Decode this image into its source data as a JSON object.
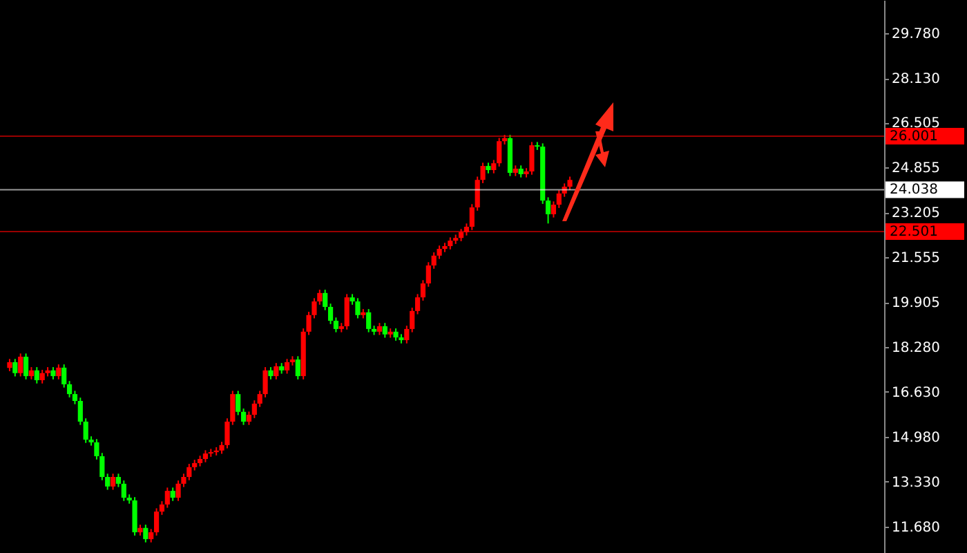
{
  "chart_data": {
    "type": "candlestick",
    "categories": [
      null,
      null,
      null,
      null,
      null,
      null,
      null,
      null,
      null,
      null,
      null,
      null,
      null,
      null,
      null,
      null,
      null,
      null,
      null,
      null,
      null,
      null,
      null,
      null,
      null,
      null,
      null,
      null,
      null,
      null,
      null,
      null,
      null,
      null,
      null,
      null,
      null,
      null,
      null,
      null,
      null,
      null,
      null,
      null,
      null,
      null,
      null,
      null,
      null,
      null,
      null,
      null,
      null,
      null,
      null,
      null,
      null,
      null,
      null,
      null,
      null,
      null,
      null,
      null,
      null,
      null,
      null,
      null,
      null,
      null,
      null,
      null,
      null,
      null,
      null,
      null,
      null,
      null,
      null,
      null,
      null,
      null,
      null,
      null,
      null,
      null,
      null,
      null,
      null,
      null,
      null,
      null,
      null,
      null,
      null,
      null,
      null,
      null,
      null,
      null,
      null,
      null,
      null,
      null,
      null,
      null,
      null,
      null,
      null,
      null,
      null,
      null,
      null,
      null,
      null,
      null,
      null,
      null,
      null,
      null,
      null,
      null,
      null,
      null,
      null,
      null,
      null,
      null,
      null,
      null,
      null,
      null,
      null,
      null,
      null,
      null,
      null,
      null,
      null,
      null,
      null,
      null,
      null,
      null,
      null,
      null,
      null,
      null,
      null,
      null,
      null,
      null,
      null,
      null,
      null,
      null,
      null,
      null,
      null,
      null
    ],
    "ohlc": [
      [
        17.5,
        17.83,
        17.38,
        17.71
      ],
      [
        17.71,
        17.83,
        17.19,
        17.31
      ],
      [
        17.31,
        18.03,
        17.19,
        17.91
      ],
      [
        17.91,
        18.03,
        17.08,
        17.2
      ],
      [
        17.2,
        17.53,
        17.08,
        17.41
      ],
      [
        17.41,
        17.53,
        16.93,
        17.05
      ],
      [
        17.05,
        17.43,
        16.93,
        17.31
      ],
      [
        17.31,
        17.53,
        17.19,
        17.41
      ],
      [
        17.41,
        17.53,
        17.08,
        17.2
      ],
      [
        17.2,
        17.63,
        17.08,
        17.51
      ],
      [
        17.51,
        17.63,
        16.78,
        16.9
      ],
      [
        16.9,
        17.02,
        16.42,
        16.54
      ],
      [
        16.54,
        16.66,
        16.17,
        16.29
      ],
      [
        16.29,
        16.41,
        15.41,
        15.53
      ],
      [
        15.53,
        15.65,
        14.75,
        14.87
      ],
      [
        14.87,
        14.99,
        14.65,
        14.77
      ],
      [
        14.77,
        14.89,
        14.14,
        14.26
      ],
      [
        14.26,
        14.38,
        13.38,
        13.5
      ],
      [
        13.5,
        13.62,
        13.03,
        13.15
      ],
      [
        13.15,
        13.62,
        13.03,
        13.5
      ],
      [
        13.5,
        13.62,
        13.13,
        13.25
      ],
      [
        13.25,
        13.37,
        12.62,
        12.74
      ],
      [
        12.74,
        12.86,
        12.52,
        12.64
      ],
      [
        12.64,
        12.76,
        11.35,
        11.47
      ],
      [
        11.47,
        11.75,
        11.35,
        11.63
      ],
      [
        11.63,
        11.75,
        11.1,
        11.22
      ],
      [
        11.22,
        11.59,
        11.1,
        11.47
      ],
      [
        11.47,
        12.35,
        11.35,
        12.23
      ],
      [
        12.23,
        12.61,
        12.11,
        12.49
      ],
      [
        12.49,
        13.11,
        12.37,
        12.99
      ],
      [
        12.99,
        13.11,
        12.62,
        12.74
      ],
      [
        12.74,
        13.37,
        12.62,
        13.25
      ],
      [
        13.25,
        13.62,
        13.13,
        13.5
      ],
      [
        13.5,
        13.98,
        13.38,
        13.86
      ],
      [
        13.86,
        14.13,
        13.74,
        14.01
      ],
      [
        14.01,
        14.28,
        13.89,
        14.16
      ],
      [
        14.16,
        14.48,
        14.04,
        14.36
      ],
      [
        14.36,
        14.53,
        14.24,
        14.41
      ],
      [
        14.41,
        14.59,
        14.29,
        14.47
      ],
      [
        14.47,
        14.79,
        14.35,
        14.67
      ],
      [
        14.67,
        15.65,
        14.55,
        15.53
      ],
      [
        15.53,
        16.66,
        15.41,
        16.54
      ],
      [
        16.54,
        16.66,
        15.77,
        15.89
      ],
      [
        15.89,
        16.01,
        15.41,
        15.53
      ],
      [
        15.53,
        15.9,
        15.41,
        15.78
      ],
      [
        15.78,
        16.31,
        15.66,
        16.19
      ],
      [
        16.19,
        16.66,
        16.07,
        16.54
      ],
      [
        16.54,
        17.53,
        16.42,
        17.41
      ],
      [
        17.41,
        17.53,
        17.08,
        17.2
      ],
      [
        17.2,
        17.68,
        17.08,
        17.56
      ],
      [
        17.56,
        17.68,
        17.29,
        17.41
      ],
      [
        17.41,
        17.83,
        17.29,
        17.71
      ],
      [
        17.71,
        17.93,
        17.59,
        17.81
      ],
      [
        17.81,
        17.93,
        17.08,
        17.2
      ],
      [
        17.2,
        18.95,
        17.08,
        18.83
      ],
      [
        18.83,
        19.56,
        18.71,
        19.44
      ],
      [
        19.44,
        20.06,
        19.32,
        19.94
      ],
      [
        19.94,
        20.37,
        19.82,
        20.25
      ],
      [
        20.25,
        20.37,
        19.62,
        19.74
      ],
      [
        19.74,
        19.86,
        19.11,
        19.23
      ],
      [
        19.23,
        19.35,
        18.81,
        18.93
      ],
      [
        18.93,
        19.15,
        18.81,
        19.03
      ],
      [
        19.03,
        20.21,
        18.91,
        20.09
      ],
      [
        20.09,
        20.21,
        19.82,
        19.94
      ],
      [
        19.94,
        20.06,
        19.32,
        19.44
      ],
      [
        19.44,
        19.66,
        19.32,
        19.54
      ],
      [
        19.54,
        19.66,
        18.81,
        18.93
      ],
      [
        18.93,
        19.05,
        18.71,
        18.83
      ],
      [
        18.83,
        19.15,
        18.71,
        19.03
      ],
      [
        19.03,
        19.15,
        18.61,
        18.73
      ],
      [
        18.73,
        18.95,
        18.61,
        18.83
      ],
      [
        18.83,
        18.95,
        18.5,
        18.62
      ],
      [
        18.62,
        18.74,
        18.4,
        18.52
      ],
      [
        18.52,
        19.05,
        18.4,
        18.93
      ],
      [
        18.93,
        19.71,
        18.81,
        19.59
      ],
      [
        19.59,
        20.21,
        19.47,
        20.09
      ],
      [
        20.09,
        20.72,
        19.97,
        20.6
      ],
      [
        20.6,
        21.38,
        20.48,
        21.26
      ],
      [
        21.26,
        21.74,
        21.14,
        21.62
      ],
      [
        21.62,
        21.99,
        21.5,
        21.87
      ],
      [
        21.87,
        22.09,
        21.75,
        21.97
      ],
      [
        21.97,
        22.29,
        21.85,
        22.17
      ],
      [
        22.17,
        22.39,
        22.05,
        22.27
      ],
      [
        22.27,
        22.6,
        22.15,
        22.48
      ],
      [
        22.48,
        22.8,
        22.36,
        22.68
      ],
      [
        22.68,
        23.51,
        22.56,
        23.39
      ],
      [
        23.39,
        24.52,
        23.27,
        24.4
      ],
      [
        24.4,
        25.03,
        24.28,
        24.91
      ],
      [
        24.91,
        25.03,
        24.64,
        24.76
      ],
      [
        24.76,
        25.13,
        24.64,
        25.01
      ],
      [
        25.01,
        25.94,
        24.89,
        25.82
      ],
      [
        25.82,
        26.05,
        25.7,
        25.93
      ],
      [
        25.93,
        26.05,
        24.54,
        24.66
      ],
      [
        24.66,
        24.93,
        24.54,
        24.81
      ],
      [
        24.81,
        24.93,
        24.49,
        24.61
      ],
      [
        24.61,
        24.83,
        24.49,
        24.71
      ],
      [
        24.71,
        25.79,
        24.59,
        25.67
      ],
      [
        25.67,
        25.79,
        25.5,
        25.62
      ],
      [
        25.62,
        25.74,
        23.52,
        23.64
      ],
      [
        23.64,
        23.76,
        22.8,
        23.14
      ],
      [
        23.14,
        23.61,
        23.02,
        23.49
      ],
      [
        23.49,
        24.02,
        23.37,
        23.9
      ],
      [
        23.9,
        24.27,
        23.78,
        24.15
      ],
      [
        24.15,
        24.52,
        24.03,
        24.4
      ],
      null,
      null,
      null,
      null,
      null,
      null,
      null,
      null,
      null,
      null,
      null,
      null,
      null,
      null,
      null,
      null,
      null,
      null,
      null,
      null,
      null,
      null,
      null,
      null,
      null,
      null,
      null,
      null,
      null,
      null,
      null,
      null,
      null,
      null,
      null,
      null,
      null,
      null,
      null,
      null,
      null,
      null,
      null,
      null,
      null,
      null,
      null,
      null,
      null,
      null,
      null,
      null,
      null,
      null,
      null,
      null
    ],
    "colors": [
      "#ff0000",
      "#00ff00",
      "#ff0000",
      "#00ff00",
      "#ff0000",
      "#00ff00",
      "#ff0000",
      "#ff0000",
      "#00ff00",
      "#ff0000",
      "#00ff00",
      "#00ff00",
      "#00ff00",
      "#00ff00",
      "#00ff00",
      "#00ff00",
      "#00ff00",
      "#00ff00",
      "#00ff00",
      "#ff0000",
      "#00ff00",
      "#00ff00",
      "#00ff00",
      "#00ff00",
      "#ff0000",
      "#00ff00",
      "#ff0000",
      "#ff0000",
      "#ff0000",
      "#ff0000",
      "#00ff00",
      "#ff0000",
      "#ff0000",
      "#ff0000",
      "#ff0000",
      "#ff0000",
      "#ff0000",
      "#ff0000",
      "#ff0000",
      "#ff0000",
      "#ff0000",
      "#ff0000",
      "#00ff00",
      "#00ff00",
      "#ff0000",
      "#ff0000",
      "#ff0000",
      "#ff0000",
      "#00ff00",
      "#ff0000",
      "#00ff00",
      "#ff0000",
      "#ff0000",
      "#00ff00",
      "#ff0000",
      "#ff0000",
      "#ff0000",
      "#ff0000",
      "#00ff00",
      "#00ff00",
      "#00ff00",
      "#ff0000",
      "#ff0000",
      "#00ff00",
      "#00ff00",
      "#ff0000",
      "#00ff00",
      "#00ff00",
      "#ff0000",
      "#00ff00",
      "#ff0000",
      "#00ff00",
      "#00ff00",
      "#ff0000",
      "#ff0000",
      "#ff0000",
      "#ff0000",
      "#ff0000",
      "#ff0000",
      "#ff0000",
      "#ff0000",
      "#ff0000",
      "#ff0000",
      "#ff0000",
      "#ff0000",
      "#ff0000",
      "#ff0000",
      "#ff0000",
      "#00ff00",
      "#ff0000",
      "#ff0000",
      "#ff0000",
      "#00ff00",
      "#ff0000",
      "#00ff00",
      "#ff0000",
      "#ff0000",
      "#00ff00",
      "#00ff00",
      "#00ff00",
      "#ff0000",
      "#ff0000",
      "#ff0000",
      "#ff0000",
      null,
      null,
      null,
      null,
      null,
      null,
      null,
      null,
      null,
      null,
      null,
      null,
      null,
      null,
      null,
      null,
      null,
      null,
      null,
      null,
      null,
      null,
      null,
      null,
      null,
      null,
      null,
      null,
      null,
      null,
      null,
      null,
      null,
      null,
      null,
      null,
      null,
      null,
      null,
      null,
      null,
      null,
      null,
      null,
      null,
      null,
      null,
      null,
      null,
      null,
      null,
      null,
      null,
      null,
      null,
      null
    ],
    "ylim": [
      10.71,
      31.0
    ],
    "yticks": [
      {
        "value": 11.68,
        "label": "11.680"
      },
      {
        "value": 13.33,
        "label": "13.330"
      },
      {
        "value": 14.98,
        "label": "14.980"
      },
      {
        "value": 16.63,
        "label": "16.630"
      },
      {
        "value": 18.28,
        "label": "18.280"
      },
      {
        "value": 19.905,
        "label": "19.905"
      },
      {
        "value": 21.555,
        "label": "21.555"
      },
      {
        "value": 23.205,
        "label": "23.205"
      },
      {
        "value": 24.855,
        "label": "24.855"
      },
      {
        "value": 26.505,
        "label": "26.505"
      },
      {
        "value": 28.13,
        "label": "28.130"
      },
      {
        "value": 29.78,
        "label": "29.780"
      }
    ],
    "ref_lines": [
      {
        "axis": "y",
        "value": 26.001,
        "label": "26.001",
        "color": "#ff0000"
      },
      {
        "axis": "y",
        "value": 24.038,
        "label": "24.038",
        "color": "#ffffff"
      },
      {
        "axis": "y",
        "value": 22.501,
        "label": "22.501",
        "color": "#ff0000"
      }
    ],
    "grid": false,
    "legend": false,
    "tick_labels": "y"
  }
}
